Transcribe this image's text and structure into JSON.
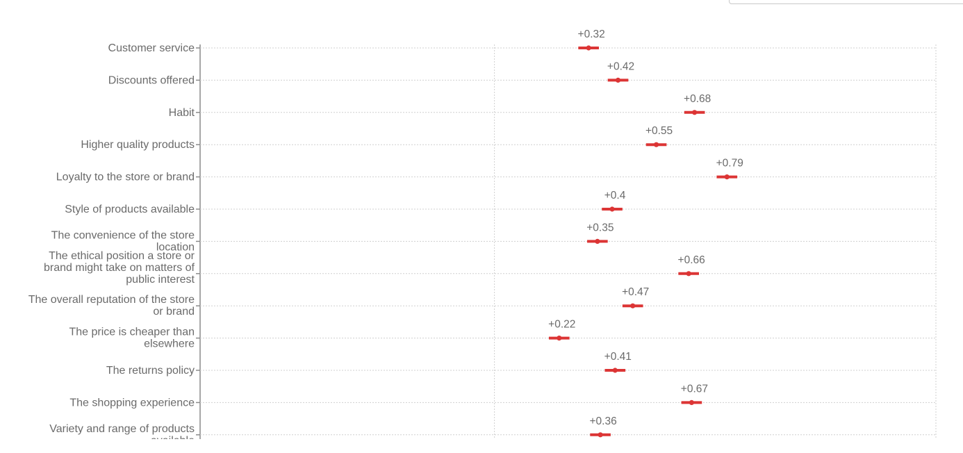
{
  "chart_data": {
    "type": "scatter",
    "orientation": "horizontal",
    "xlim": [
      -1,
      1.5
    ],
    "grid": true,
    "marker_color": "#dc3535",
    "categories": [
      [
        "Customer service"
      ],
      [
        "Discounts offered"
      ],
      [
        "Habit"
      ],
      [
        "Higher quality products"
      ],
      [
        "Loyalty to the store or brand"
      ],
      [
        "Style of products available"
      ],
      [
        "The convenience of the store",
        "location"
      ],
      [
        "The ethical position a store or",
        "brand might take on matters of",
        "public interest"
      ],
      [
        "The overall reputation of the store",
        "or brand"
      ],
      [
        "The price is cheaper than",
        "elsewhere"
      ],
      [
        "The returns policy"
      ],
      [
        "The shopping experience"
      ],
      [
        "Variety and range of products",
        "available"
      ]
    ],
    "values": [
      0.32,
      0.42,
      0.68,
      0.55,
      0.79,
      0.4,
      0.35,
      0.66,
      0.47,
      0.22,
      0.41,
      0.67,
      0.36
    ],
    "value_labels": [
      "+0.32",
      "+0.42",
      "+0.68",
      "+0.55",
      "+0.79",
      "+0.4",
      "+0.35",
      "+0.66",
      "+0.47",
      "+0.22",
      "+0.41",
      "+0.67",
      "+0.36"
    ],
    "error": [
      0.035,
      0.035,
      0.035,
      0.035,
      0.035,
      0.035,
      0.035,
      0.035,
      0.035,
      0.035,
      0.035,
      0.035,
      0.035
    ]
  }
}
